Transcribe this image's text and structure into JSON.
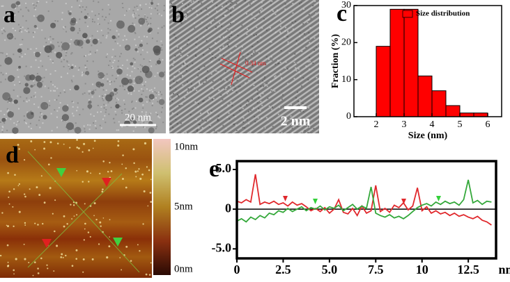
{
  "panels": {
    "a": {
      "label": "a",
      "scale_bar": "20 nm"
    },
    "b": {
      "label": "b",
      "lattice_spacing": "0.34 nm",
      "scale_bar": "2 nm"
    },
    "d": {
      "label": "d",
      "colorbar_labels": [
        "10nm",
        "5nm",
        "0nm"
      ]
    }
  },
  "chart_data": [
    {
      "type": "histogram",
      "panel_label": "c",
      "bins": [
        2,
        2.5,
        3,
        3.5,
        4,
        4.5,
        5,
        5.5,
        6
      ],
      "series": [
        {
          "name": "Size distribution",
          "color": "#ff0000",
          "values": [
            19,
            29,
            29,
            11,
            7,
            3,
            1,
            1
          ]
        }
      ],
      "xlabel": "Size (nm)",
      "ylabel": "Fraction (%)",
      "xlim": [
        1.2,
        6.5
      ],
      "xticks": [
        2,
        3,
        4,
        5,
        6
      ],
      "ylim": [
        0,
        30
      ],
      "yticks": [
        0,
        10,
        20,
        30
      ],
      "legend": "upper right"
    },
    {
      "type": "line",
      "panel_label": "e",
      "x": [
        0,
        0.25,
        0.5,
        0.75,
        1,
        1.25,
        1.5,
        1.75,
        2,
        2.25,
        2.5,
        2.75,
        3,
        3.25,
        3.5,
        3.75,
        4,
        4.25,
        4.5,
        4.75,
        5,
        5.25,
        5.5,
        5.75,
        6,
        6.25,
        6.5,
        6.75,
        7,
        7.25,
        7.5,
        7.75,
        8,
        8.25,
        8.5,
        8.75,
        9,
        9.25,
        9.5,
        9.75,
        10,
        10.25,
        10.5,
        10.75,
        11,
        11.25,
        11.5,
        11.75,
        12,
        12.25,
        12.5,
        12.75,
        13,
        13.25,
        13.5,
        13.75
      ],
      "series": [
        {
          "color": "#e0282c",
          "values": [
            1.0,
            0.8,
            1.2,
            0.9,
            4.4,
            0.6,
            0.9,
            0.7,
            1.0,
            0.6,
            0.8,
            0.4,
            0.9,
            0.5,
            0.7,
            0.3,
            -0.2,
            0.1,
            -0.3,
            0.2,
            -0.5,
            0.0,
            1.2,
            -0.4,
            -0.6,
            0.1,
            -0.8,
            0.4,
            -0.5,
            -0.2,
            3.0,
            -0.3,
            0.1,
            -0.4,
            0.5,
            0.2,
            0.8,
            -0.1,
            0.4,
            2.7,
            -0.2,
            0.3,
            -0.5,
            -0.2,
            -0.6,
            -0.4,
            -0.8,
            -0.5,
            -0.9,
            -0.7,
            -1.0,
            -1.2,
            -0.9,
            -1.4,
            -1.6,
            -2.0
          ]
        },
        {
          "color": "#34a83a",
          "values": [
            -1.5,
            -1.2,
            -1.6,
            -1.0,
            -1.3,
            -0.8,
            -1.1,
            -0.5,
            -0.7,
            -0.2,
            -0.4,
            0.1,
            -0.3,
            0.0,
            0.3,
            -0.2,
            0.2,
            0.0,
            0.4,
            -0.1,
            0.3,
            0.1,
            0.5,
            -0.2,
            0.2,
            0.6,
            0.0,
            0.4,
            0.1,
            2.8,
            -0.5,
            -0.8,
            -1.0,
            -0.7,
            -1.1,
            -0.9,
            -1.2,
            -0.8,
            -0.3,
            0.2,
            0.5,
            0.7,
            0.4,
            0.9,
            0.6,
            1.0,
            0.7,
            0.9,
            0.5,
            1.2,
            3.7,
            0.8,
            1.1,
            0.6,
            1.0,
            0.9
          ]
        }
      ],
      "xlabel": "nm",
      "xlim": [
        0,
        14
      ],
      "xticks": [
        0,
        2.5,
        {
          "value": 5,
          "label": "5.0"
        },
        7.5,
        10,
        12.5
      ],
      "ylim": [
        -6.2,
        6.05
      ],
      "yticks": [
        {
          "value": 5,
          "label": "5.0"
        },
        0,
        {
          "value": -5,
          "label": "-5.0"
        }
      ],
      "zero_line": true
    }
  ]
}
